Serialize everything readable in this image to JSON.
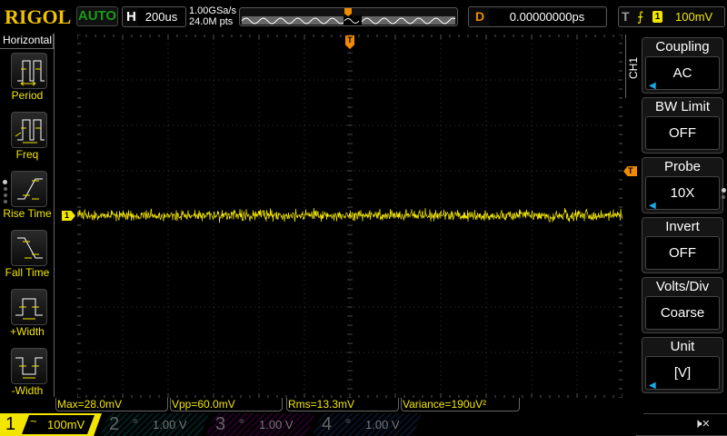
{
  "header": {
    "logo": "RIGOL",
    "run_status": "AUTO",
    "h_label": "H",
    "timebase": "200us",
    "sample_rate": "1.00GSa/s",
    "memory_depth": "24.0M pts",
    "d_label": "D",
    "delay": "0.00000000ps",
    "t_label": "T",
    "trigger_source": "1",
    "trigger_level": "100mV",
    "trigger_edge_icon": "rising-edge-icon"
  },
  "left_menu": {
    "title": "Horizontal",
    "items": [
      {
        "label": "Period",
        "icon": "period-icon"
      },
      {
        "label": "Freq",
        "icon": "freq-icon"
      },
      {
        "label": "Rise Time",
        "icon": "rise-time-icon"
      },
      {
        "label": "Fall Time",
        "icon": "fall-time-icon"
      },
      {
        "label": "+Width",
        "icon": "positive-width-icon"
      },
      {
        "label": "-Width",
        "icon": "negative-width-icon"
      }
    ]
  },
  "right_menu": {
    "channel": "CH1",
    "items": [
      {
        "title": "Coupling",
        "value": "AC",
        "arrow": true
      },
      {
        "title": "BW Limit",
        "value": "OFF",
        "arrow": false
      },
      {
        "title": "Probe",
        "value": "10X",
        "arrow": true
      },
      {
        "title": "Invert",
        "value": "OFF",
        "arrow": false
      },
      {
        "title": "Volts/Div",
        "value": "Coarse",
        "arrow": false
      },
      {
        "title": "Unit",
        "value": "[V]",
        "arrow": true
      }
    ]
  },
  "markers": {
    "trigger_pos": "T",
    "trigger_level": "T",
    "ch1": "1"
  },
  "measurements": [
    "Max=28.0mV",
    "Vpp=60.0mV",
    "Rms=13.3mV",
    "Variance=190uV²"
  ],
  "channels": [
    {
      "num": "1",
      "coupling": "~",
      "scale": "100mV",
      "color": "#f2e600",
      "active": true
    },
    {
      "num": "2",
      "coupling": "=",
      "scale": "1.00 V",
      "color": "#00a0a0",
      "active": false
    },
    {
      "num": "3",
      "coupling": "=",
      "scale": "1.00 V",
      "color": "#c000c0",
      "active": false
    },
    {
      "num": "4",
      "coupling": "=",
      "scale": "1.00 V",
      "color": "#2060c0",
      "active": false
    }
  ],
  "sound_icon": "speaker-muted-icon",
  "colors": {
    "ch1": "#f2e600",
    "trigger": "#f08a00",
    "accent": "#1aa8e0"
  }
}
